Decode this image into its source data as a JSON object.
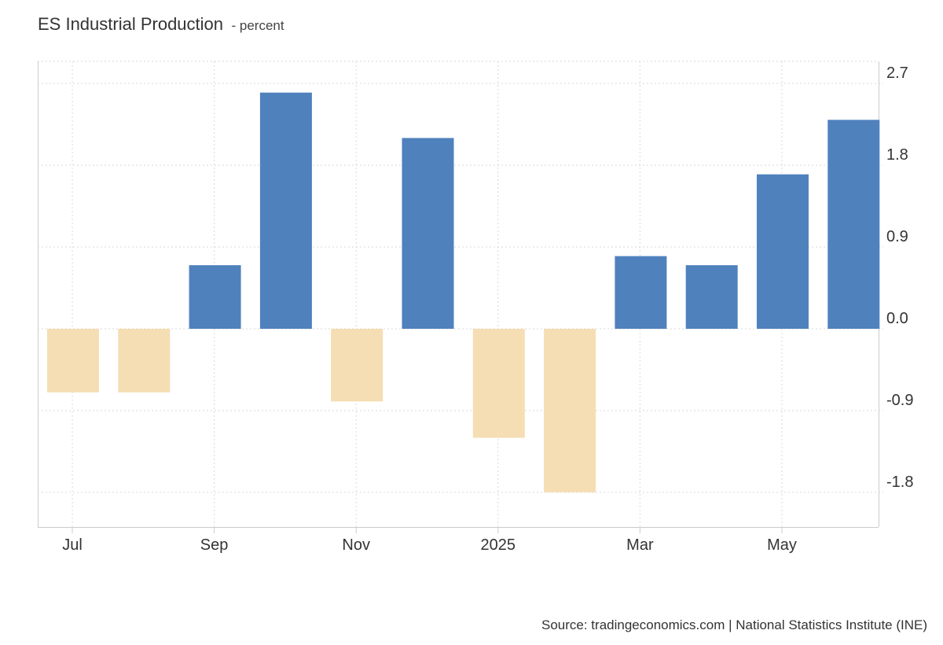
{
  "chart_data": {
    "type": "bar",
    "title": "ES Industrial Production",
    "subtitle": "- percent",
    "categories": [
      "Jul 2024",
      "Aug 2024",
      "Sep 2024",
      "Oct 2024",
      "Nov 2024",
      "Dec 2024",
      "Jan 2025",
      "Feb 2025",
      "Mar 2025",
      "Apr 2025",
      "May 2025",
      "Jun 2025"
    ],
    "values": [
      -0.7,
      -0.7,
      0.7,
      2.6,
      -0.8,
      2.1,
      -1.2,
      -1.8,
      0.8,
      0.7,
      1.7,
      2.3
    ],
    "x_tick_labels": [
      {
        "label": "Jul",
        "category": "Jul 2024"
      },
      {
        "label": "Sep",
        "category": "Sep 2024"
      },
      {
        "label": "Nov",
        "category": "Nov 2024"
      },
      {
        "label": "2025",
        "category": "Jan 2025"
      },
      {
        "label": "Mar",
        "category": "Mar 2025"
      },
      {
        "label": "May",
        "category": "May 2025"
      }
    ],
    "y_ticks": [
      "2.7",
      "1.8",
      "0.9",
      "0.0",
      "-0.9",
      "-1.8"
    ],
    "ylim": [
      -2.2,
      2.9
    ],
    "y_axis_side": "right",
    "grid": true,
    "legend": "none",
    "colors": {
      "positive": "#4f81bd",
      "negative": "#f5deb3",
      "grid": "#d9d9d9",
      "axis": "#cccccc"
    }
  },
  "source": "Source: tradingeconomics.com | National Statistics Institute (INE)"
}
